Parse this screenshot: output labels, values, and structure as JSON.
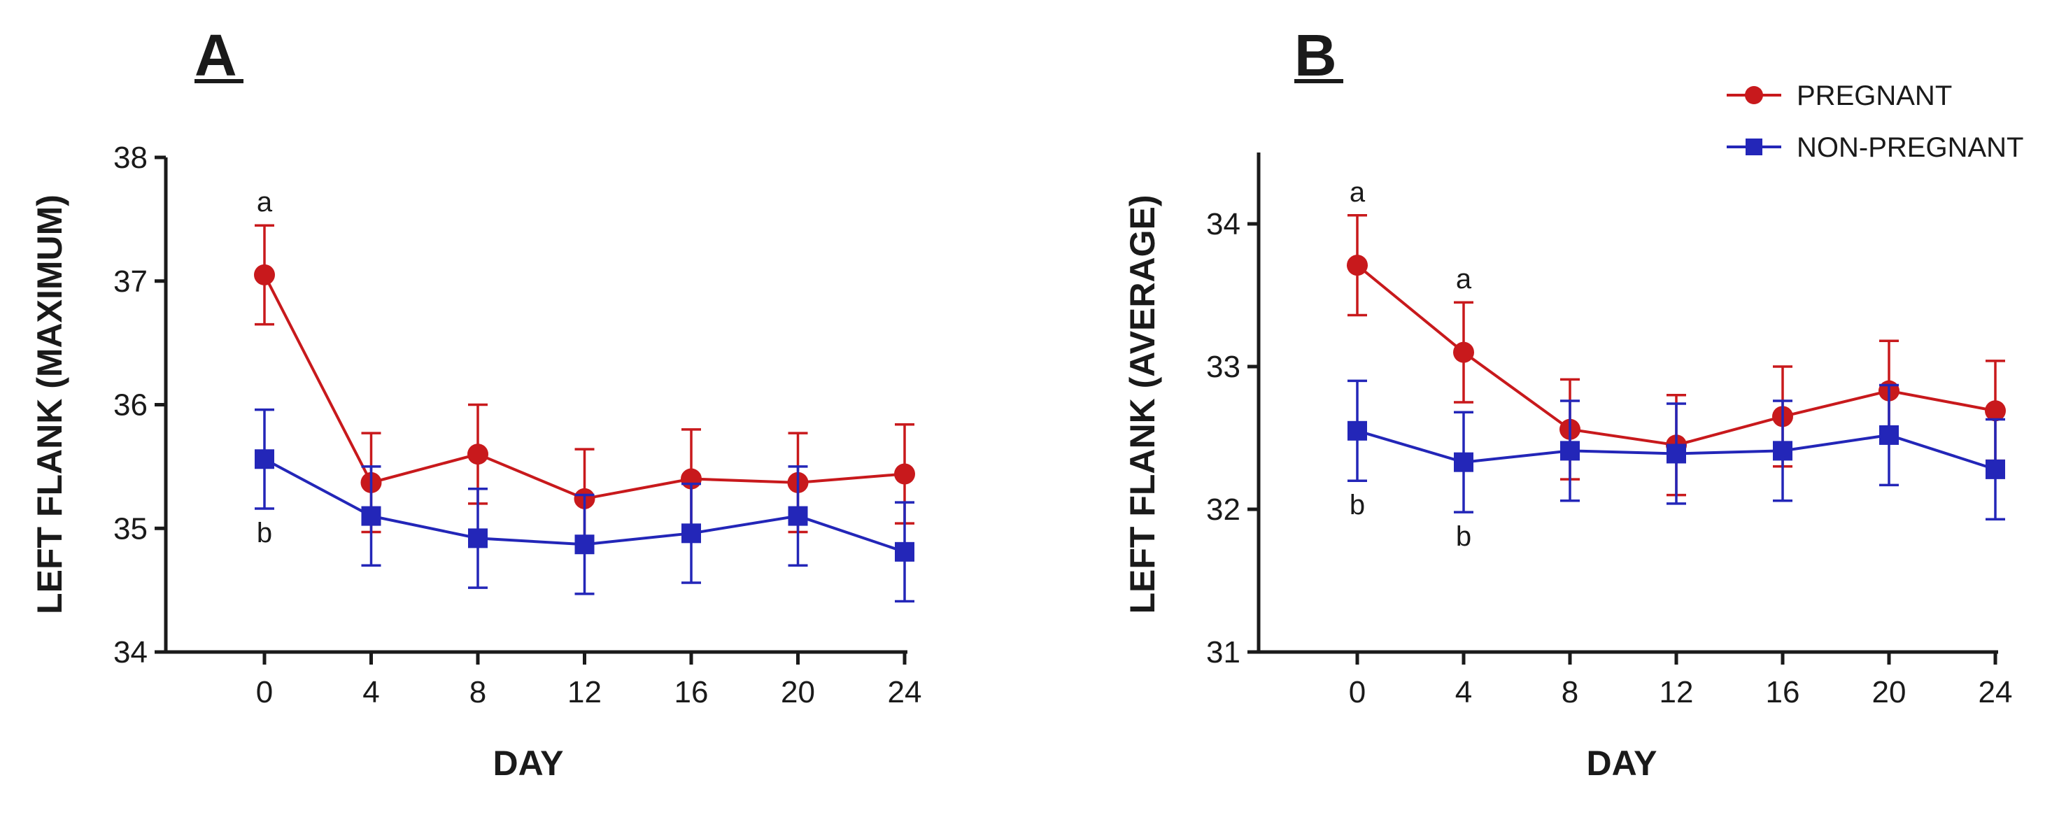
{
  "colors": {
    "pregnant": "#c8191c",
    "non_pregnant": "#2326b8",
    "axis": "#1a1a1a"
  },
  "legend": {
    "items": [
      {
        "label": "PREGNANT",
        "series": "pregnant",
        "marker": "circle"
      },
      {
        "label": "NON-PREGNANT",
        "series": "non_pregnant",
        "marker": "square"
      }
    ]
  },
  "chart_data": [
    {
      "panel": "A",
      "type": "line",
      "xlabel": "DAY",
      "ylabel": "LEFT FLANK (MAXIMUM)",
      "ylim": [
        34,
        38
      ],
      "yticks": [
        34,
        35,
        36,
        37,
        38
      ],
      "x": [
        0,
        4,
        8,
        12,
        16,
        20,
        24
      ],
      "series": [
        {
          "name": "PREGNANT",
          "key": "pregnant",
          "values": [
            37.05,
            35.37,
            35.6,
            35.24,
            35.4,
            35.37,
            35.44
          ],
          "errors": [
            0.4,
            0.4,
            0.4,
            0.4,
            0.4,
            0.4,
            0.4
          ]
        },
        {
          "name": "NON-PREGNANT",
          "key": "non_pregnant",
          "values": [
            35.56,
            35.1,
            34.92,
            34.87,
            34.96,
            35.1,
            34.81
          ],
          "errors": [
            0.4,
            0.4,
            0.4,
            0.4,
            0.4,
            0.4,
            0.4
          ]
        }
      ],
      "annotations": [
        {
          "text": "a",
          "x": 0,
          "series": "pregnant",
          "position": "above"
        },
        {
          "text": "b",
          "x": 0,
          "series": "non_pregnant",
          "position": "below"
        }
      ]
    },
    {
      "panel": "B",
      "type": "line",
      "xlabel": "DAY",
      "ylabel": "LEFT FLANK (AVERAGE)",
      "ylim": [
        31,
        34.5
      ],
      "yticks": [
        31,
        32,
        33,
        34
      ],
      "x": [
        0,
        4,
        8,
        12,
        16,
        20,
        24
      ],
      "series": [
        {
          "name": "PREGNANT",
          "key": "pregnant",
          "values": [
            33.71,
            33.1,
            32.56,
            32.45,
            32.65,
            32.83,
            32.69
          ],
          "errors": [
            0.35,
            0.35,
            0.35,
            0.35,
            0.35,
            0.35,
            0.35
          ]
        },
        {
          "name": "NON-PREGNANT",
          "key": "non_pregnant",
          "values": [
            32.55,
            32.33,
            32.41,
            32.39,
            32.41,
            32.52,
            32.28
          ],
          "errors": [
            0.35,
            0.35,
            0.35,
            0.35,
            0.35,
            0.35,
            0.35
          ]
        }
      ],
      "annotations": [
        {
          "text": "a",
          "x": 0,
          "series": "pregnant",
          "position": "above"
        },
        {
          "text": "b",
          "x": 0,
          "series": "non_pregnant",
          "position": "below"
        },
        {
          "text": "a",
          "x": 4,
          "series": "pregnant",
          "position": "above"
        },
        {
          "text": "b",
          "x": 4,
          "series": "non_pregnant",
          "position": "below"
        }
      ]
    }
  ]
}
